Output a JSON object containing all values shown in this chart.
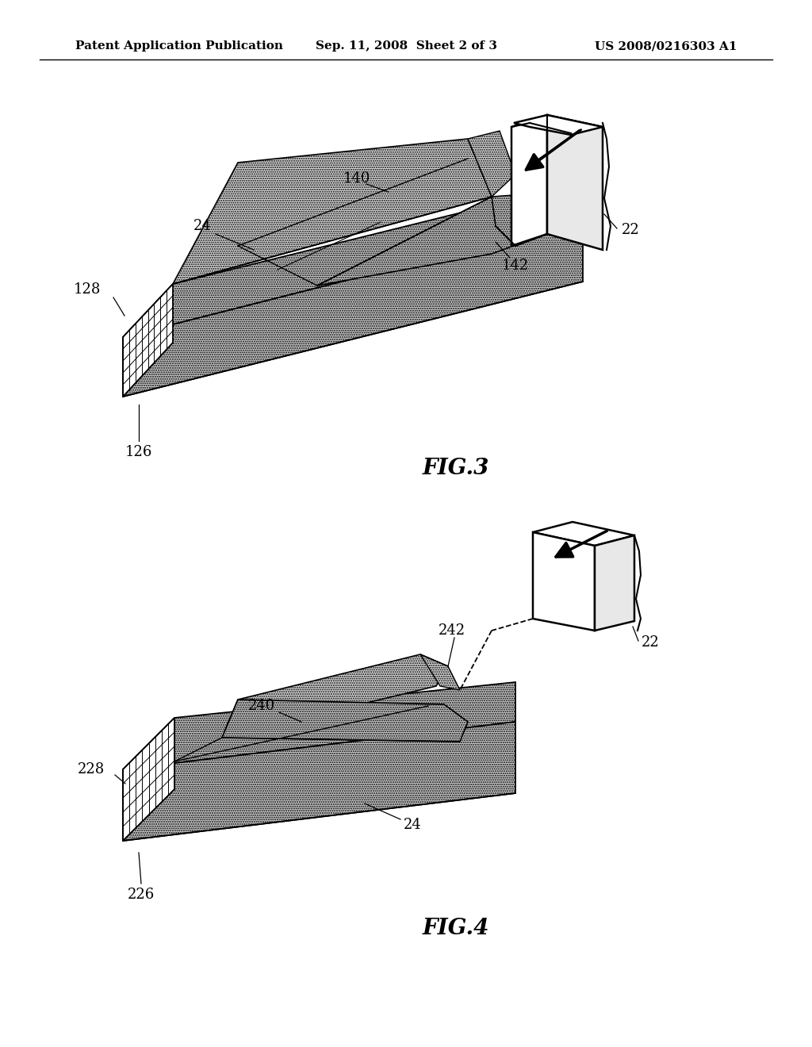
{
  "bg_color": "#ffffff",
  "header_left": "Patent Application Publication",
  "header_center": "Sep. 11, 2008  Sheet 2 of 3",
  "header_right": "US 2008/0216303 A1",
  "fig3_label": "FIG.3",
  "fig4_label": "FIG.4",
  "text_color": "#000000",
  "header_fontsize": 11,
  "fig_label_fontsize": 20,
  "annotation_fontsize": 13,
  "stipple_color": "#c8c8c8",
  "stipple_color2": "#d8d8d8",
  "hatch_color": "#888888"
}
